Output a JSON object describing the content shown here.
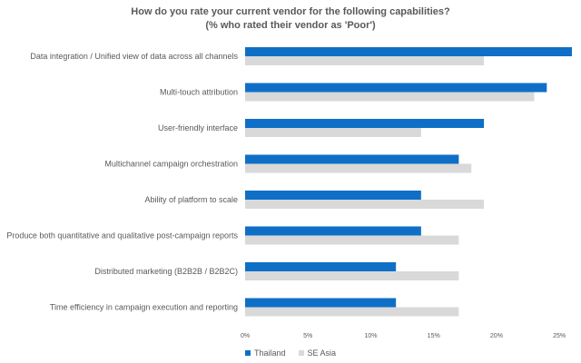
{
  "chart_data": {
    "type": "bar",
    "orientation": "horizontal",
    "title": "How do you rate your current vendor for the following capabilities?",
    "subtitle": "(% who rated their vendor as 'Poor')",
    "categories": [
      "Data integration / Unified view of data across all channels",
      "Multi-touch attribution",
      "User-friendly interface",
      "Multichannel campaign orchestration",
      "Ability of platform to scale",
      "Produce both quantitative and qualitative post-campaign reports",
      "Distributed marketing (B2B2B / B2B2C)",
      "Time efficiency in campaign execution and reporting"
    ],
    "series": [
      {
        "name": "Thailand",
        "color": "#0f6fc6",
        "values": [
          26,
          24,
          19,
          17,
          14,
          14,
          12,
          12
        ]
      },
      {
        "name": "SE Asia",
        "color": "#d9d9d9",
        "values": [
          19,
          23,
          14,
          18,
          19,
          17,
          17,
          17
        ]
      }
    ],
    "xlim": [
      0,
      26
    ],
    "xticks": [
      "0%",
      "5%",
      "10%",
      "15%",
      "20%",
      "25%"
    ],
    "xtick_values": [
      0,
      5,
      10,
      15,
      20,
      25
    ],
    "grid": false,
    "legend_position": "bottom"
  }
}
